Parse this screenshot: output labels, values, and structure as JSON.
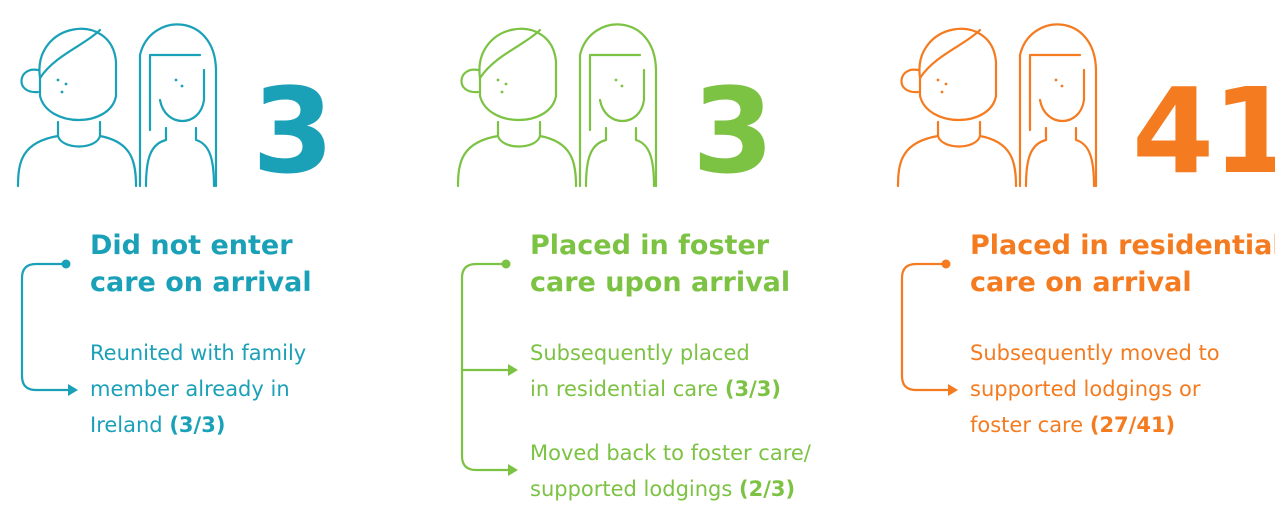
{
  "columns": [
    {
      "count": 3,
      "title": [
        "Did not enter",
        "care on arrival"
      ],
      "outcomes": [
        {
          "lines": [
            "Reunited with family",
            "member already in",
            "Ireland"
          ],
          "fraction": "(3/3)"
        }
      ]
    },
    {
      "count": 3,
      "title": [
        "Placed in foster",
        "care upon arrival"
      ],
      "outcomes": [
        {
          "lines": [
            "Subsequently placed",
            "in residential care"
          ],
          "fraction": "(3/3)"
        },
        {
          "lines": [
            "Moved back to foster care/",
            "supported lodgings"
          ],
          "fraction": "(2/3)"
        }
      ]
    },
    {
      "count": 41,
      "title": [
        "Placed in residential",
        "care on arrival"
      ],
      "outcomes": [
        {
          "lines": [
            "Subsequently moved to",
            "supported lodgings or",
            "foster care"
          ],
          "fraction": "(27/41)"
        }
      ]
    }
  ]
}
